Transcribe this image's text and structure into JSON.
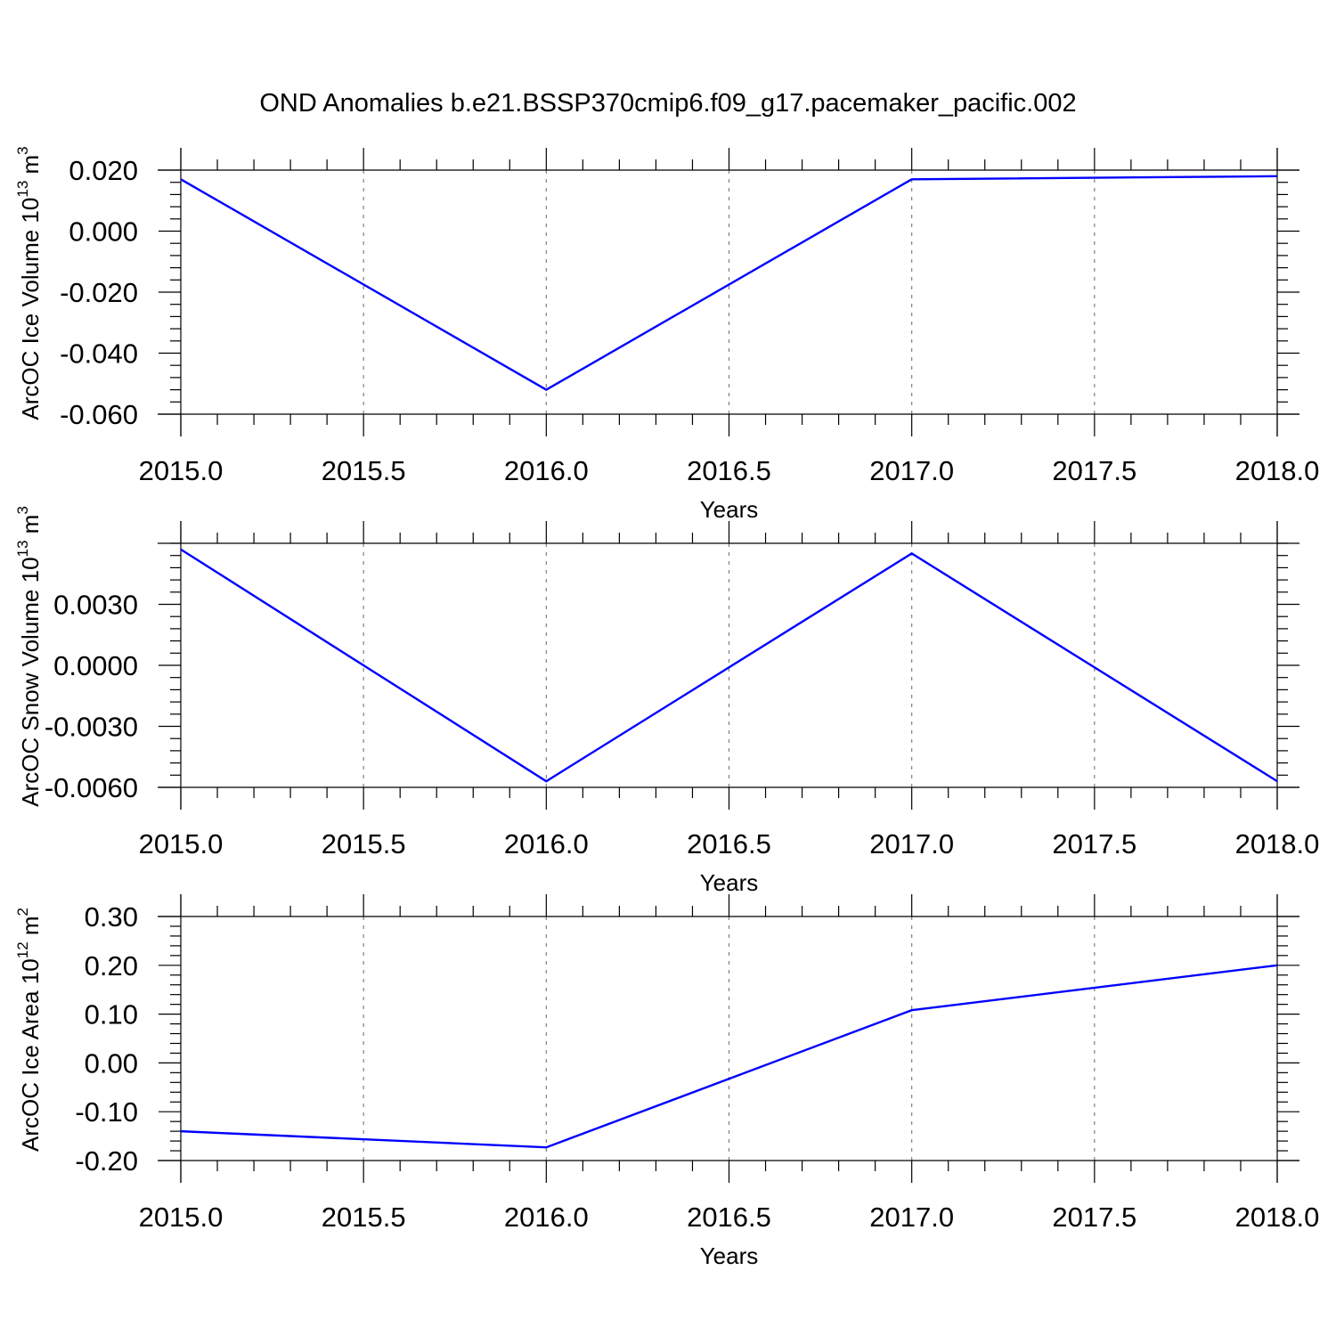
{
  "title": "OND Anomalies b.e21.BSSP370cmip6.f09_g17.pacemaker_pacific.002",
  "colors": {
    "line": "#0000ff",
    "axes": "#000000",
    "grid": "#808080"
  },
  "chart_data": [
    {
      "type": "line",
      "ylabel": "ArcOC Ice Volume 10",
      "ylabel_exp": "13",
      "ylabel_unit": " m",
      "ylabel_unit_exp": "3",
      "xlabel": "Years",
      "xlim": [
        2015.0,
        2018.0
      ],
      "ylim": [
        -0.06,
        0.02
      ],
      "x_ticks": [
        "2015.0",
        "2015.5",
        "2016.0",
        "2016.5",
        "2017.0",
        "2017.5",
        "2018.0"
      ],
      "y_ticks": [
        {
          "value": 0.02,
          "label": "0.020"
        },
        {
          "value": 0.0,
          "label": "0.000"
        },
        {
          "value": -0.02,
          "label": "-0.020"
        },
        {
          "value": -0.04,
          "label": "-0.040"
        },
        {
          "value": -0.06,
          "label": "-0.060"
        }
      ],
      "grid": "dashed vertical at major x ticks",
      "series": [
        {
          "x": [
            2015,
            2016,
            2017,
            2018
          ],
          "values": [
            0.017,
            -0.052,
            0.017,
            0.018
          ]
        }
      ]
    },
    {
      "type": "line",
      "ylabel": "ArcOC Snow Volume 10",
      "ylabel_exp": "13",
      "ylabel_unit": " m",
      "ylabel_unit_exp": "3",
      "xlabel": "Years",
      "xlim": [
        2015.0,
        2018.0
      ],
      "ylim": [
        -0.006,
        0.006
      ],
      "x_ticks": [
        "2015.0",
        "2015.5",
        "2016.0",
        "2016.5",
        "2017.0",
        "2017.5",
        "2018.0"
      ],
      "y_ticks": [
        {
          "value": 0.003,
          "label": "0.0030"
        },
        {
          "value": 0.0,
          "label": "0.0000"
        },
        {
          "value": -0.003,
          "label": "-0.0030"
        },
        {
          "value": -0.006,
          "label": "-0.0060"
        }
      ],
      "grid": "dashed vertical at major x ticks",
      "series": [
        {
          "x": [
            2015,
            2016,
            2017,
            2018
          ],
          "values": [
            0.0057,
            -0.0057,
            0.0055,
            -0.0057
          ]
        }
      ]
    },
    {
      "type": "line",
      "ylabel": "ArcOC Ice Area 10",
      "ylabel_exp": "12",
      "ylabel_unit": " m",
      "ylabel_unit_exp": "2",
      "xlabel": "Years",
      "xlim": [
        2015.0,
        2018.0
      ],
      "ylim": [
        -0.2,
        0.3
      ],
      "x_ticks": [
        "2015.0",
        "2015.5",
        "2016.0",
        "2016.5",
        "2017.0",
        "2017.5",
        "2018.0"
      ],
      "y_ticks": [
        {
          "value": 0.3,
          "label": "0.30"
        },
        {
          "value": 0.2,
          "label": "0.20"
        },
        {
          "value": 0.1,
          "label": "0.10"
        },
        {
          "value": 0.0,
          "label": "0.00"
        },
        {
          "value": -0.1,
          "label": "-0.10"
        },
        {
          "value": -0.2,
          "label": "-0.20"
        }
      ],
      "grid": "dashed vertical at major x ticks",
      "series": [
        {
          "x": [
            2015,
            2016,
            2017,
            2018
          ],
          "values": [
            -0.14,
            -0.173,
            0.108,
            0.2
          ]
        }
      ]
    }
  ]
}
